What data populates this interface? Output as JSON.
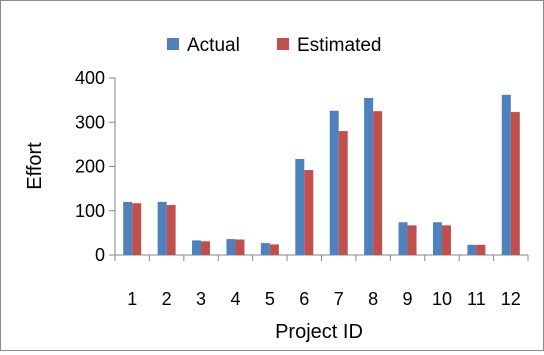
{
  "chart_data": {
    "type": "bar",
    "title": "",
    "xlabel": "Project ID",
    "ylabel": "Effort",
    "ylim": [
      0,
      400
    ],
    "yticks": [
      0,
      100,
      200,
      300,
      400
    ],
    "grid": false,
    "legend_position": "top",
    "categories": [
      "1",
      "2",
      "3",
      "4",
      "5",
      "6",
      "7",
      "8",
      "9",
      "10",
      "11",
      "12"
    ],
    "series": [
      {
        "name": "Actual",
        "color": "#4f81bd",
        "values": [
          120,
          120,
          33,
          36,
          27,
          217,
          326,
          355,
          74,
          74,
          23,
          362
        ]
      },
      {
        "name": "Estimated",
        "color": "#c0504d",
        "values": [
          117,
          113,
          31,
          35,
          24,
          192,
          280,
          325,
          67,
          67,
          23,
          323
        ]
      }
    ]
  }
}
